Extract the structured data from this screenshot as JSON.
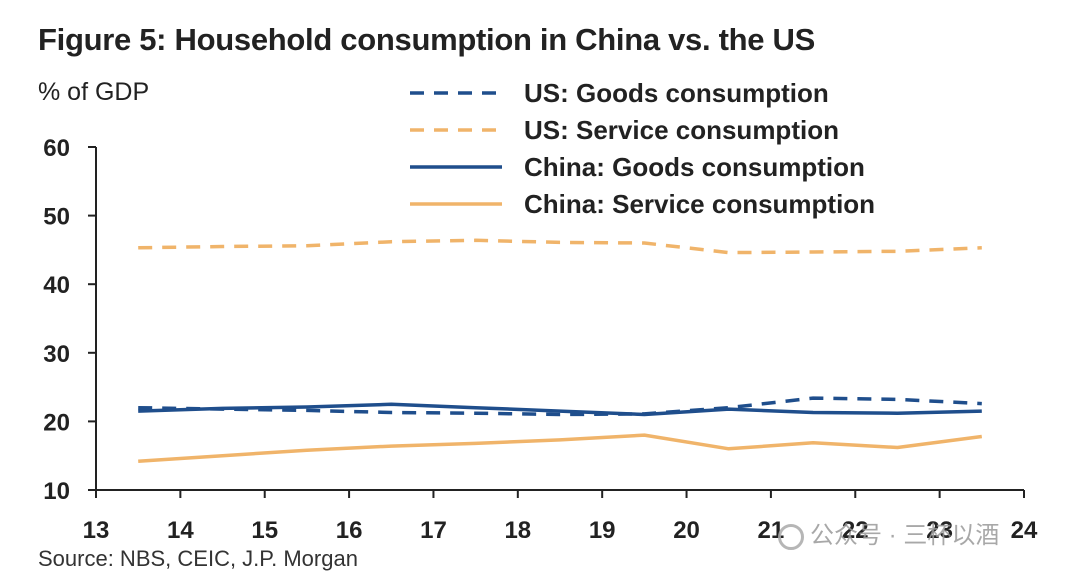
{
  "figure": {
    "title": "Figure 5: Household consumption in China vs. the US",
    "unit_label": "% of GDP",
    "source": "Source: NBS, CEIC, J.P. Morgan",
    "watermark": "公众号 · 三杯以酒"
  },
  "chart_data": {
    "type": "line",
    "title": "Figure 5: Household consumption in China vs. the US",
    "xlabel": "",
    "ylabel": "% of GDP",
    "xlim": [
      13,
      24
    ],
    "ylim": [
      10,
      60
    ],
    "x_ticks": [
      13,
      14,
      15,
      16,
      17,
      18,
      19,
      20,
      21,
      22,
      23,
      24
    ],
    "x_tick_labels": [
      "13",
      "14",
      "15",
      "16",
      "17",
      "18",
      "19",
      "20",
      "21",
      "22",
      "23",
      "24"
    ],
    "y_ticks": [
      10,
      20,
      30,
      40,
      50,
      60
    ],
    "y_tick_labels": [
      "10",
      "20",
      "30",
      "40",
      "50",
      "60"
    ],
    "grid": false,
    "legend_position": "top-right",
    "x": [
      13.5,
      14.5,
      15.5,
      16.5,
      17.5,
      18.5,
      19.5,
      20.5,
      21.5,
      22.5,
      23.5
    ],
    "series": [
      {
        "name": "US: Goods consumption",
        "color": "#1f4e8c",
        "style": "dashed",
        "values": [
          22.0,
          21.8,
          21.6,
          21.3,
          21.2,
          21.0,
          21.1,
          22.0,
          23.4,
          23.2,
          22.6
        ]
      },
      {
        "name": "US: Service consumption",
        "color": "#f0b46a",
        "style": "dashed",
        "values": [
          45.3,
          45.5,
          45.6,
          46.2,
          46.4,
          46.1,
          46.0,
          44.6,
          44.7,
          44.8,
          45.3
        ]
      },
      {
        "name": "China: Goods consumption",
        "color": "#1f4e8c",
        "style": "solid",
        "values": [
          21.5,
          21.9,
          22.1,
          22.5,
          22.0,
          21.5,
          21.0,
          21.8,
          21.3,
          21.2,
          21.5
        ]
      },
      {
        "name": "China: Service consumption",
        "color": "#f0b46a",
        "style": "solid",
        "values": [
          14.2,
          15.0,
          15.8,
          16.4,
          16.8,
          17.3,
          18.0,
          16.0,
          16.9,
          16.2,
          17.8
        ]
      }
    ]
  }
}
